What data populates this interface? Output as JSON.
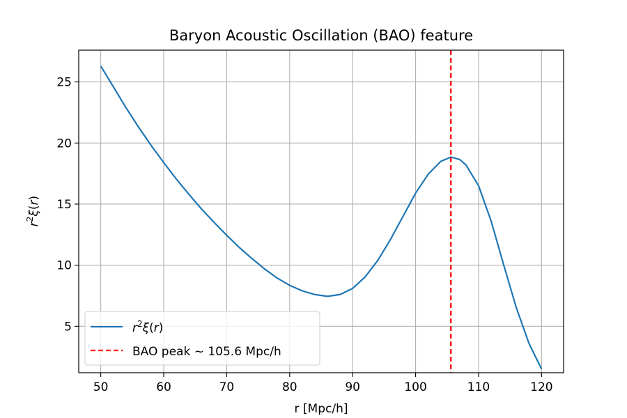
{
  "chart_data": {
    "type": "line",
    "title": "Baryon Acoustic Oscillation (BAO) feature",
    "xlabel": "r [Mpc/h]",
    "ylabel": "r²ξ(r)",
    "xlim": [
      46.5,
      123.5
    ],
    "ylim": [
      1.2,
      27.6
    ],
    "xticks": [
      50,
      60,
      70,
      80,
      90,
      100,
      110,
      120
    ],
    "yticks": [
      5,
      10,
      15,
      20,
      25
    ],
    "grid": true,
    "legend_position": "lower-left",
    "series": [
      {
        "name": "r²ξ(r)",
        "color": "#1f77b4",
        "style": "solid",
        "x": [
          50,
          52,
          54,
          56,
          58,
          60,
          62,
          64,
          66,
          68,
          70,
          72,
          74,
          76,
          78,
          80,
          82,
          84,
          86,
          88,
          90,
          92,
          94,
          96,
          98,
          100,
          102,
          104,
          105.6,
          107,
          108,
          110,
          112,
          114,
          116,
          118,
          120
        ],
        "y": [
          26.3,
          24.6,
          22.9,
          21.3,
          19.8,
          18.4,
          17.05,
          15.8,
          14.6,
          13.5,
          12.45,
          11.45,
          10.55,
          9.7,
          8.95,
          8.35,
          7.9,
          7.6,
          7.45,
          7.6,
          8.1,
          9.05,
          10.4,
          12.1,
          14.0,
          15.9,
          17.45,
          18.5,
          18.85,
          18.65,
          18.2,
          16.5,
          13.6,
          10.0,
          6.5,
          3.6,
          1.5
        ]
      },
      {
        "name": "BAO peak ~ 105.6 Mpc/h",
        "color": "#ff0000",
        "style": "dashed",
        "vline_x": 105.6
      }
    ]
  }
}
